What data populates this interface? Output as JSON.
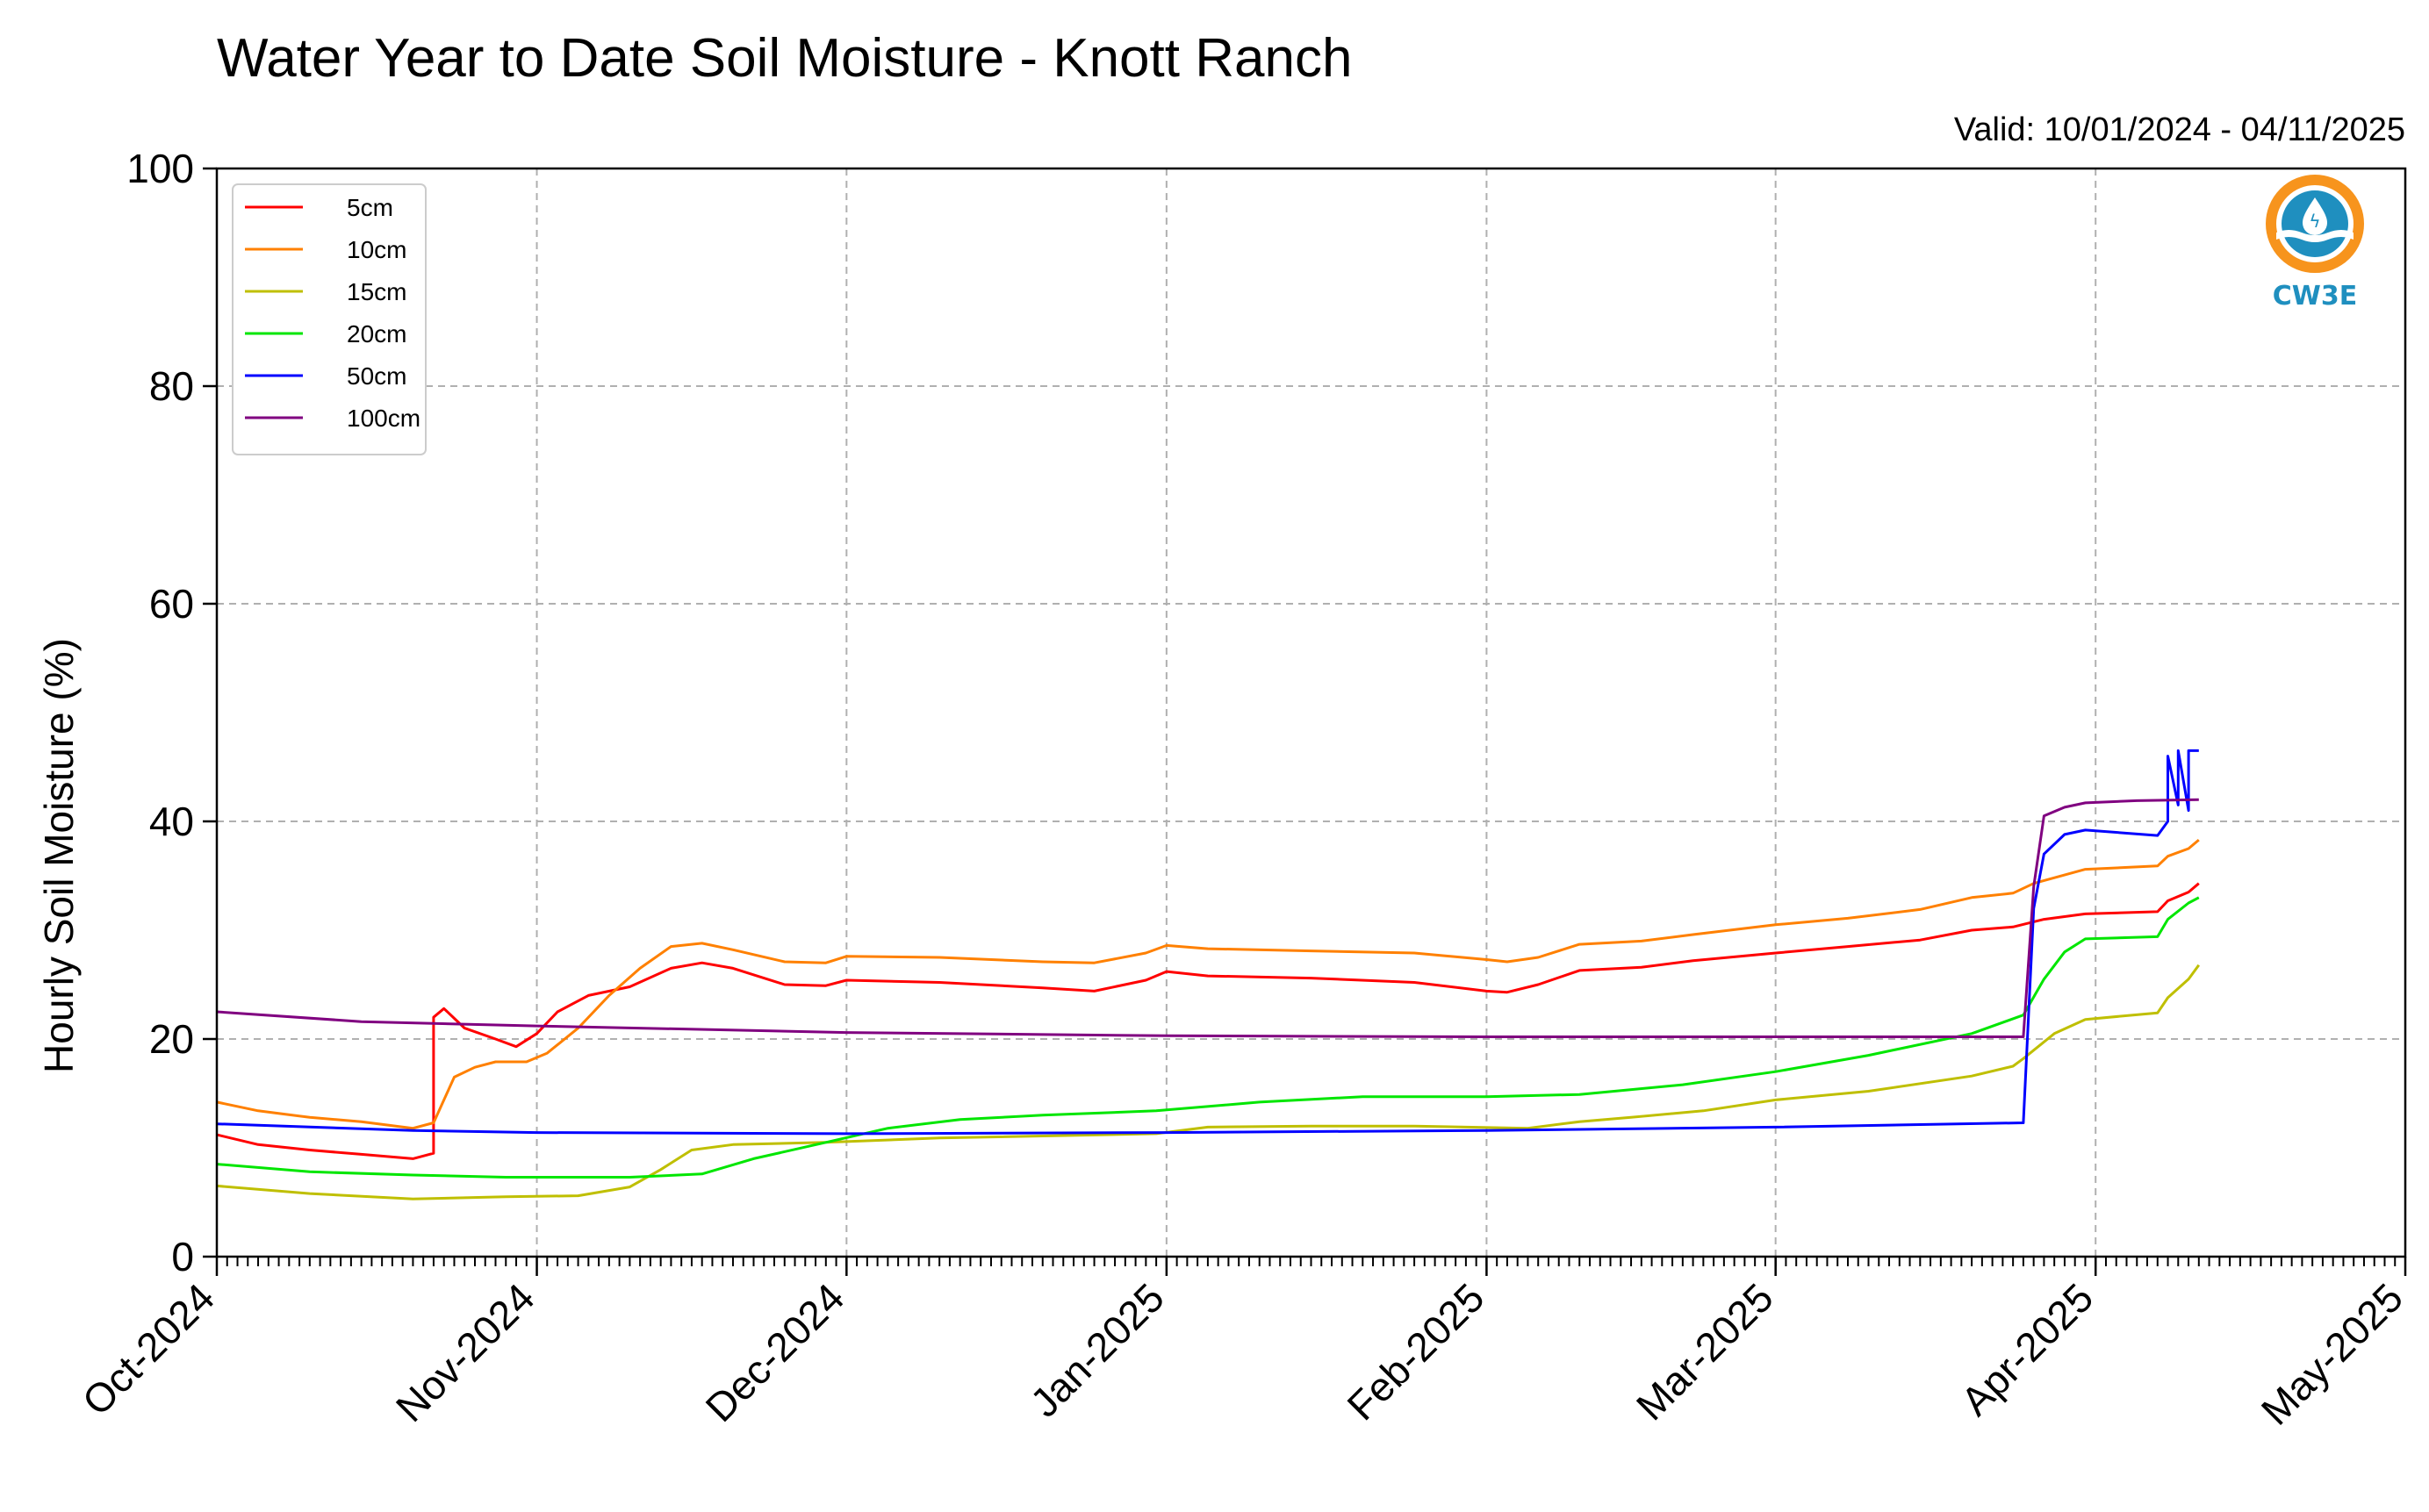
{
  "chart_data": {
    "type": "line",
    "title": "Water Year to Date Soil Moisture - Knott Ranch",
    "subtitle": "Valid: 10/01/2024 - 04/11/2025",
    "xlabel": "",
    "ylabel": "Hourly Soil Moisture (%)",
    "xlim": [
      "2024-10-01",
      "2025-05-01"
    ],
    "ylim": [
      0,
      100
    ],
    "yticks": [
      0,
      20,
      40,
      60,
      80,
      100
    ],
    "xticks": [
      {
        "date": "2024-10-01",
        "label": "Oct-2024"
      },
      {
        "date": "2024-11-01",
        "label": "Nov-2024"
      },
      {
        "date": "2024-12-01",
        "label": "Dec-2024"
      },
      {
        "date": "2025-01-01",
        "label": "Jan-2025"
      },
      {
        "date": "2025-02-01",
        "label": "Feb-2025"
      },
      {
        "date": "2025-03-01",
        "label": "Mar-2025"
      },
      {
        "date": "2025-04-01",
        "label": "Apr-2025"
      },
      {
        "date": "2025-05-01",
        "label": "May-2025"
      }
    ],
    "grid": true,
    "legend_position": "top-left",
    "series": [
      {
        "name": "5cm",
        "color": "#ff0000",
        "points": [
          [
            "2024-10-01",
            11.2
          ],
          [
            "2024-10-05",
            10.3
          ],
          [
            "2024-10-10",
            9.8
          ],
          [
            "2024-10-15",
            9.4
          ],
          [
            "2024-10-20",
            9.0
          ],
          [
            "2024-10-22",
            9.5
          ],
          [
            "2024-10-22",
            22.0
          ],
          [
            "2024-10-23",
            22.8
          ],
          [
            "2024-10-25",
            21.0
          ],
          [
            "2024-10-28",
            20.0
          ],
          [
            "2024-10-30",
            19.3
          ],
          [
            "2024-11-01",
            20.5
          ],
          [
            "2024-11-03",
            22.5
          ],
          [
            "2024-11-06",
            24.0
          ],
          [
            "2024-11-10",
            24.8
          ],
          [
            "2024-11-14",
            26.5
          ],
          [
            "2024-11-17",
            27.0
          ],
          [
            "2024-11-20",
            26.5
          ],
          [
            "2024-11-25",
            25.0
          ],
          [
            "2024-11-29",
            24.9
          ],
          [
            "2024-12-01",
            25.4
          ],
          [
            "2024-12-10",
            25.2
          ],
          [
            "2024-12-20",
            24.7
          ],
          [
            "2024-12-25",
            24.4
          ],
          [
            "2024-12-30",
            25.4
          ],
          [
            "2025-01-01",
            26.2
          ],
          [
            "2025-01-05",
            25.8
          ],
          [
            "2025-01-15",
            25.6
          ],
          [
            "2025-01-25",
            25.2
          ],
          [
            "2025-02-01",
            24.4
          ],
          [
            "2025-02-03",
            24.3
          ],
          [
            "2025-02-06",
            25.0
          ],
          [
            "2025-02-10",
            26.3
          ],
          [
            "2025-02-16",
            26.6
          ],
          [
            "2025-02-21",
            27.2
          ],
          [
            "2025-03-01",
            27.9
          ],
          [
            "2025-03-08",
            28.5
          ],
          [
            "2025-03-15",
            29.1
          ],
          [
            "2025-03-20",
            30.0
          ],
          [
            "2025-03-24",
            30.3
          ],
          [
            "2025-03-27",
            31.0
          ],
          [
            "2025-03-31",
            31.5
          ],
          [
            "2025-04-07",
            31.7
          ],
          [
            "2025-04-08",
            32.7
          ],
          [
            "2025-04-10",
            33.5
          ],
          [
            "2025-04-11",
            34.3
          ]
        ]
      },
      {
        "name": "10cm",
        "color": "#ff8000",
        "points": [
          [
            "2024-10-01",
            14.2
          ],
          [
            "2024-10-05",
            13.4
          ],
          [
            "2024-10-10",
            12.8
          ],
          [
            "2024-10-15",
            12.4
          ],
          [
            "2024-10-20",
            11.8
          ],
          [
            "2024-10-22",
            12.3
          ],
          [
            "2024-10-24",
            16.5
          ],
          [
            "2024-10-26",
            17.4
          ],
          [
            "2024-10-28",
            17.9
          ],
          [
            "2024-10-31",
            17.9
          ],
          [
            "2024-11-02",
            18.7
          ],
          [
            "2024-11-05",
            21.0
          ],
          [
            "2024-11-08",
            24.0
          ],
          [
            "2024-11-11",
            26.5
          ],
          [
            "2024-11-14",
            28.5
          ],
          [
            "2024-11-17",
            28.8
          ],
          [
            "2024-11-20",
            28.2
          ],
          [
            "2024-11-25",
            27.1
          ],
          [
            "2024-11-29",
            27.0
          ],
          [
            "2024-12-01",
            27.6
          ],
          [
            "2024-12-10",
            27.5
          ],
          [
            "2024-12-20",
            27.1
          ],
          [
            "2024-12-25",
            27.0
          ],
          [
            "2024-12-30",
            27.9
          ],
          [
            "2025-01-01",
            28.6
          ],
          [
            "2025-01-05",
            28.3
          ],
          [
            "2025-01-15",
            28.1
          ],
          [
            "2025-01-25",
            27.9
          ],
          [
            "2025-02-01",
            27.3
          ],
          [
            "2025-02-03",
            27.1
          ],
          [
            "2025-02-06",
            27.5
          ],
          [
            "2025-02-10",
            28.7
          ],
          [
            "2025-02-16",
            29.0
          ],
          [
            "2025-02-21",
            29.6
          ],
          [
            "2025-03-01",
            30.5
          ],
          [
            "2025-03-08",
            31.1
          ],
          [
            "2025-03-15",
            31.9
          ],
          [
            "2025-03-20",
            33.0
          ],
          [
            "2025-03-24",
            33.4
          ],
          [
            "2025-03-26",
            34.3
          ],
          [
            "2025-03-31",
            35.6
          ],
          [
            "2025-04-07",
            35.9
          ],
          [
            "2025-04-08",
            36.8
          ],
          [
            "2025-04-10",
            37.5
          ],
          [
            "2025-04-11",
            38.3
          ]
        ]
      },
      {
        "name": "15cm",
        "color": "#bfbf00",
        "points": [
          [
            "2024-10-01",
            6.5
          ],
          [
            "2024-10-10",
            5.8
          ],
          [
            "2024-10-20",
            5.3
          ],
          [
            "2024-10-29",
            5.5
          ],
          [
            "2024-11-05",
            5.6
          ],
          [
            "2024-11-10",
            6.4
          ],
          [
            "2024-11-13",
            8.0
          ],
          [
            "2024-11-16",
            9.8
          ],
          [
            "2024-11-20",
            10.3
          ],
          [
            "2024-11-29",
            10.5
          ],
          [
            "2024-12-10",
            10.9
          ],
          [
            "2024-12-31",
            11.3
          ],
          [
            "2025-01-05",
            11.9
          ],
          [
            "2025-01-15",
            12.0
          ],
          [
            "2025-01-25",
            12.0
          ],
          [
            "2025-02-05",
            11.8
          ],
          [
            "2025-02-10",
            12.4
          ],
          [
            "2025-02-15",
            12.8
          ],
          [
            "2025-02-22",
            13.4
          ],
          [
            "2025-03-01",
            14.4
          ],
          [
            "2025-03-10",
            15.2
          ],
          [
            "2025-03-20",
            16.6
          ],
          [
            "2025-03-24",
            17.5
          ],
          [
            "2025-03-25",
            18.2
          ],
          [
            "2025-03-28",
            20.5
          ],
          [
            "2025-03-31",
            21.8
          ],
          [
            "2025-04-07",
            22.4
          ],
          [
            "2025-04-08",
            23.8
          ],
          [
            "2025-04-10",
            25.5
          ],
          [
            "2025-04-11",
            26.8
          ]
        ]
      },
      {
        "name": "20cm",
        "color": "#00e600",
        "points": [
          [
            "2024-10-01",
            8.5
          ],
          [
            "2024-10-10",
            7.8
          ],
          [
            "2024-10-20",
            7.5
          ],
          [
            "2024-10-29",
            7.3
          ],
          [
            "2024-11-10",
            7.3
          ],
          [
            "2024-11-17",
            7.6
          ],
          [
            "2024-11-22",
            9.0
          ],
          [
            "2024-11-29",
            10.5
          ],
          [
            "2024-12-05",
            11.8
          ],
          [
            "2024-12-12",
            12.6
          ],
          [
            "2024-12-20",
            13.0
          ],
          [
            "2024-12-31",
            13.4
          ],
          [
            "2025-01-10",
            14.2
          ],
          [
            "2025-01-20",
            14.7
          ],
          [
            "2025-02-01",
            14.7
          ],
          [
            "2025-02-10",
            14.9
          ],
          [
            "2025-02-20",
            15.8
          ],
          [
            "2025-03-01",
            17.0
          ],
          [
            "2025-03-10",
            18.5
          ],
          [
            "2025-03-20",
            20.5
          ],
          [
            "2025-03-25",
            22.2
          ],
          [
            "2025-03-27",
            25.5
          ],
          [
            "2025-03-29",
            28.0
          ],
          [
            "2025-03-31",
            29.2
          ],
          [
            "2025-04-07",
            29.4
          ],
          [
            "2025-04-08",
            31.0
          ],
          [
            "2025-04-10",
            32.5
          ],
          [
            "2025-04-11",
            33.0
          ]
        ]
      },
      {
        "name": "50cm",
        "color": "#0000ff",
        "points": [
          [
            "2024-10-01",
            12.2
          ],
          [
            "2024-10-20",
            11.6
          ],
          [
            "2024-11-01",
            11.4
          ],
          [
            "2024-12-01",
            11.3
          ],
          [
            "2025-01-01",
            11.4
          ],
          [
            "2025-02-01",
            11.6
          ],
          [
            "2025-03-01",
            11.9
          ],
          [
            "2025-03-25",
            12.3
          ],
          [
            "2025-03-26",
            32.0
          ],
          [
            "2025-03-27",
            37.0
          ],
          [
            "2025-03-29",
            38.8
          ],
          [
            "2025-03-31",
            39.2
          ],
          [
            "2025-04-07",
            38.7
          ],
          [
            "2025-04-08",
            40.0
          ],
          [
            "2025-04-08",
            46.0
          ],
          [
            "2025-04-09",
            41.5
          ],
          [
            "2025-04-09",
            46.5
          ],
          [
            "2025-04-10",
            41.0
          ],
          [
            "2025-04-10",
            46.5
          ],
          [
            "2025-04-11",
            46.5
          ]
        ]
      },
      {
        "name": "100cm",
        "color": "#800080",
        "points": [
          [
            "2024-10-01",
            22.5
          ],
          [
            "2024-10-15",
            21.6
          ],
          [
            "2024-11-01",
            21.2
          ],
          [
            "2024-12-01",
            20.6
          ],
          [
            "2025-01-01",
            20.3
          ],
          [
            "2025-02-01",
            20.2
          ],
          [
            "2025-03-01",
            20.2
          ],
          [
            "2025-03-25",
            20.2
          ],
          [
            "2025-03-26",
            34.0
          ],
          [
            "2025-03-27",
            40.5
          ],
          [
            "2025-03-29",
            41.3
          ],
          [
            "2025-03-31",
            41.7
          ],
          [
            "2025-04-05",
            41.9
          ],
          [
            "2025-04-11",
            42.0
          ]
        ]
      }
    ]
  },
  "logo": {
    "text": "CW3E",
    "ring_color": "#f7941d",
    "body_color": "#1f8fbf"
  }
}
